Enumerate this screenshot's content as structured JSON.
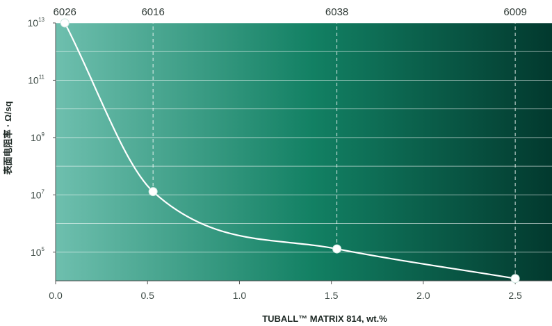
{
  "chart_data": {
    "type": "line",
    "xlabel": "TUBALL™ MATRIX 814, wt.%",
    "ylabel": "表面电阻率 · Ω/sq",
    "xlim": [
      0,
      2.7
    ],
    "ylim": [
      4,
      13
    ],
    "y_scale": "log10",
    "x_ticks": [
      "0.0",
      "0.5",
      "1.0",
      "1.5",
      "2.0",
      "2.5"
    ],
    "y_ticks": [
      {
        "base": "10",
        "exp": "5"
      },
      {
        "base": "10",
        "exp": "7"
      },
      {
        "base": "10",
        "exp": "9"
      },
      {
        "base": "10",
        "exp": "11"
      },
      {
        "base": "10",
        "exp": "13"
      }
    ],
    "points": [
      {
        "x": 0.05,
        "y": 10000000000000.0,
        "label": "6026"
      },
      {
        "x": 0.53,
        "y": 13000000.0,
        "label": "6016"
      },
      {
        "x": 1.53,
        "y": 130000.0,
        "label": "6038"
      },
      {
        "x": 2.5,
        "y": 12000.0,
        "label": "6009"
      }
    ],
    "grid": true,
    "background_gradient": [
      "#6ebfae",
      "#128063",
      "#02392e"
    ],
    "line_color": "#ffffff"
  }
}
